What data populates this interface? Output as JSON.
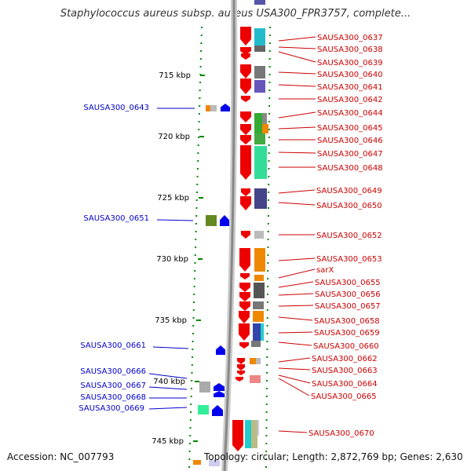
{
  "title": "Staphylococcus aureus subsp. aureus USA300_FPR3757, complete...",
  "accession": "Accession: NC_007793",
  "topology": "Topology: circular; Length: 2,872,769 bp; Genes: 2,630",
  "scale_ticks": [
    "715 kbp",
    "720 kbp",
    "725 kbp",
    "730 kbp",
    "735 kbp",
    "740 kbp",
    "745 kbp"
  ],
  "left_labels": [
    "SAUSA300_0643",
    "SAUSA300_0651",
    "SAUSA300_0661",
    "SAUSA300_0666",
    "SAUSA300_0667",
    "SAUSA300_0668",
    "SAUSA300_0669"
  ],
  "right_labels": [
    "SAUSA300_0637",
    "SAUSA300_0638",
    "SAUSA300_0639",
    "SAUSA300_0640",
    "SAUSA300_0641",
    "SAUSA300_0642",
    "SAUSA300_0644",
    "SAUSA300_0645",
    "SAUSA300_0646",
    "SAUSA300_0647",
    "SAUSA300_0648",
    "SAUSA300_0649",
    "SAUSA300_0650",
    "SAUSA300_0652",
    "SAUSA300_0653",
    "sarX",
    "SAUSA300_0655",
    "SAUSA300_0656",
    "SAUSA300_0657",
    "SAUSA300_0658",
    "SAUSA300_0659",
    "SAUSA300_0660",
    "SAUSA300_0662",
    "SAUSA300_0663",
    "SAUSA300_0664",
    "SAUSA300_0665",
    "SAUSA300_0670"
  ],
  "colors": {
    "forward_gene": "#0000ee",
    "reverse_gene": "#ee0000",
    "backbone": "#888888",
    "tick": "#008800",
    "label_left": "#0000cc",
    "label_right": "#cc0000"
  }
}
